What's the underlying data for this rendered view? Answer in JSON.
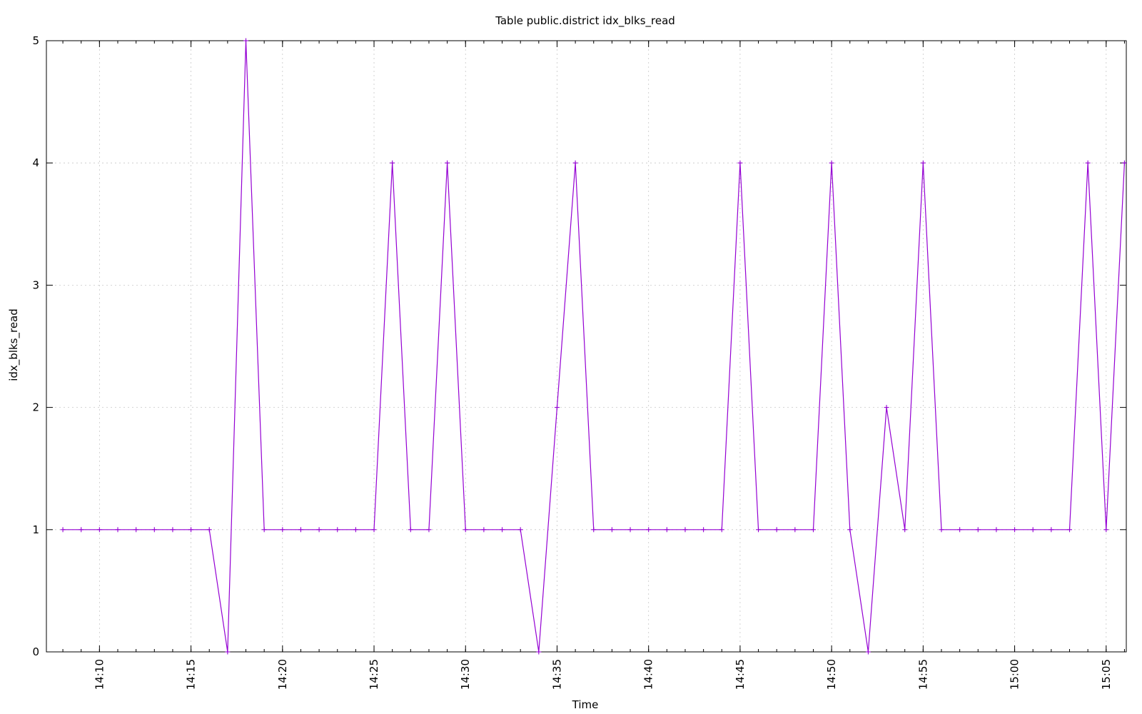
{
  "chart_data": {
    "type": "line",
    "title": "Table public.district idx_blks_read",
    "xlabel": "Time",
    "ylabel": "idx_blks_read",
    "xlim": [
      "14:07:06",
      "15:06:06"
    ],
    "ylim": [
      0,
      5
    ],
    "grid": true,
    "legend": "none",
    "x_ticks": [
      "14:10",
      "14:15",
      "14:20",
      "14:25",
      "14:30",
      "14:35",
      "14:40",
      "14:45",
      "14:50",
      "14:55",
      "15:00",
      "15:05"
    ],
    "y_ticks": [
      "0",
      "1",
      "2",
      "3",
      "4",
      "5"
    ],
    "series": [
      {
        "color": "#9400d3",
        "marker": "plus",
        "x": [
          "14:08",
          "14:09",
          "14:10",
          "14:11",
          "14:12",
          "14:13",
          "14:14",
          "14:15",
          "14:16",
          "14:17",
          "14:18",
          "14:19",
          "14:20",
          "14:21",
          "14:22",
          "14:23",
          "14:24",
          "14:25",
          "14:26",
          "14:27",
          "14:28",
          "14:29",
          "14:30",
          "14:31",
          "14:32",
          "14:33",
          "14:34",
          "14:35",
          "14:36",
          "14:37",
          "14:38",
          "14:39",
          "14:40",
          "14:41",
          "14:42",
          "14:43",
          "14:44",
          "14:45",
          "14:46",
          "14:47",
          "14:48",
          "14:49",
          "14:50",
          "14:51",
          "14:52",
          "14:53",
          "14:54",
          "14:55",
          "14:56",
          "14:57",
          "14:58",
          "14:59",
          "15:00",
          "15:01",
          "15:02",
          "15:03",
          "15:04",
          "15:05",
          "15:06"
        ],
        "values": [
          1,
          1,
          1,
          1,
          1,
          1,
          1,
          1,
          1,
          0,
          5,
          1,
          1,
          1,
          1,
          1,
          1,
          1,
          4,
          1,
          1,
          4,
          1,
          1,
          1,
          1,
          0,
          2,
          4,
          1,
          1,
          1,
          1,
          1,
          1,
          1,
          1,
          4,
          1,
          1,
          1,
          1,
          4,
          1,
          0,
          2,
          1,
          4,
          1,
          1,
          1,
          1,
          1,
          1,
          1,
          1,
          4,
          1,
          4
        ]
      }
    ]
  }
}
